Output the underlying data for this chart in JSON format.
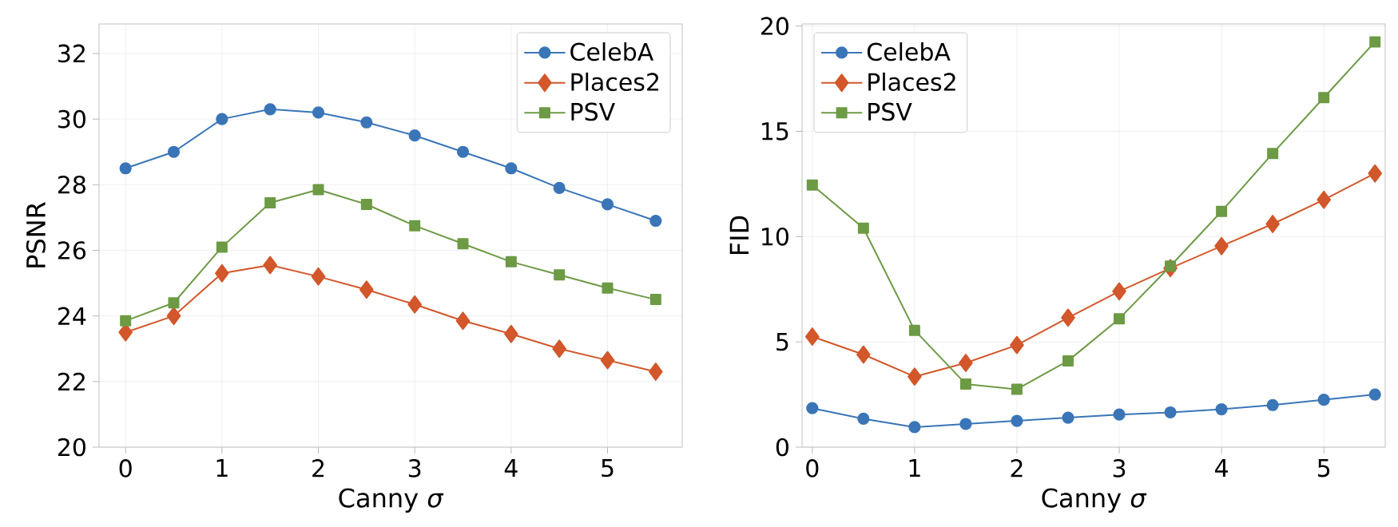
{
  "chart_data": [
    {
      "type": "line",
      "xlabel": "Canny *σ*",
      "ylabel": "PSNR",
      "x": [
        0,
        0.5,
        1,
        1.5,
        2,
        2.5,
        3,
        3.5,
        4,
        4.5,
        5,
        5.5
      ],
      "xlim": [
        -0.275,
        5.775
      ],
      "ylim": [
        20,
        32.9
      ],
      "xticks": [
        0,
        1,
        2,
        3,
        4,
        5
      ],
      "yticks": [
        20,
        22,
        24,
        26,
        28,
        30,
        32
      ],
      "grid": true,
      "legend": "top right",
      "series": [
        {
          "name": "CelebA",
          "color": "#3a75b8",
          "marker": "circle",
          "values": [
            28.5,
            29.0,
            30.0,
            30.3,
            30.2,
            29.9,
            29.5,
            29.0,
            28.5,
            27.9,
            27.4,
            26.9
          ]
        },
        {
          "name": "Places2",
          "color": "#d2572b",
          "marker": "diamond",
          "values": [
            23.5,
            24.0,
            25.3,
            25.55,
            25.2,
            24.8,
            24.35,
            23.85,
            23.45,
            23.0,
            22.65,
            22.3
          ]
        },
        {
          "name": "PSV",
          "color": "#6d9a45",
          "marker": "square",
          "values": [
            23.85,
            24.4,
            26.1,
            27.45,
            27.85,
            27.4,
            26.75,
            26.2,
            25.65,
            25.25,
            24.85,
            24.5
          ]
        }
      ]
    },
    {
      "type": "line",
      "xlabel": "Canny *σ*",
      "ylabel": "FID",
      "x": [
        0,
        0.5,
        1,
        1.5,
        2,
        2.5,
        3,
        3.5,
        4,
        4.5,
        5,
        5.5
      ],
      "xlim": [
        -0.1,
        5.6
      ],
      "ylim": [
        0,
        20.1
      ],
      "xticks": [
        0,
        1,
        2,
        3,
        4,
        5
      ],
      "yticks": [
        0,
        5,
        10,
        15,
        20
      ],
      "grid": true,
      "legend": "top left",
      "series": [
        {
          "name": "CelebA",
          "color": "#3a75b8",
          "marker": "circle",
          "values": [
            1.85,
            1.35,
            0.95,
            1.1,
            1.25,
            1.4,
            1.55,
            1.65,
            1.8,
            2.0,
            2.25,
            2.5
          ]
        },
        {
          "name": "Places2",
          "color": "#d2572b",
          "marker": "diamond",
          "values": [
            5.25,
            4.4,
            3.35,
            4.0,
            4.85,
            6.15,
            7.4,
            8.5,
            9.55,
            10.6,
            11.75,
            13.0
          ]
        },
        {
          "name": "PSV",
          "color": "#6d9a45",
          "marker": "square",
          "values": [
            12.45,
            10.4,
            5.55,
            3.0,
            2.75,
            4.1,
            6.1,
            8.6,
            11.2,
            13.95,
            16.6,
            19.25
          ]
        }
      ]
    }
  ]
}
